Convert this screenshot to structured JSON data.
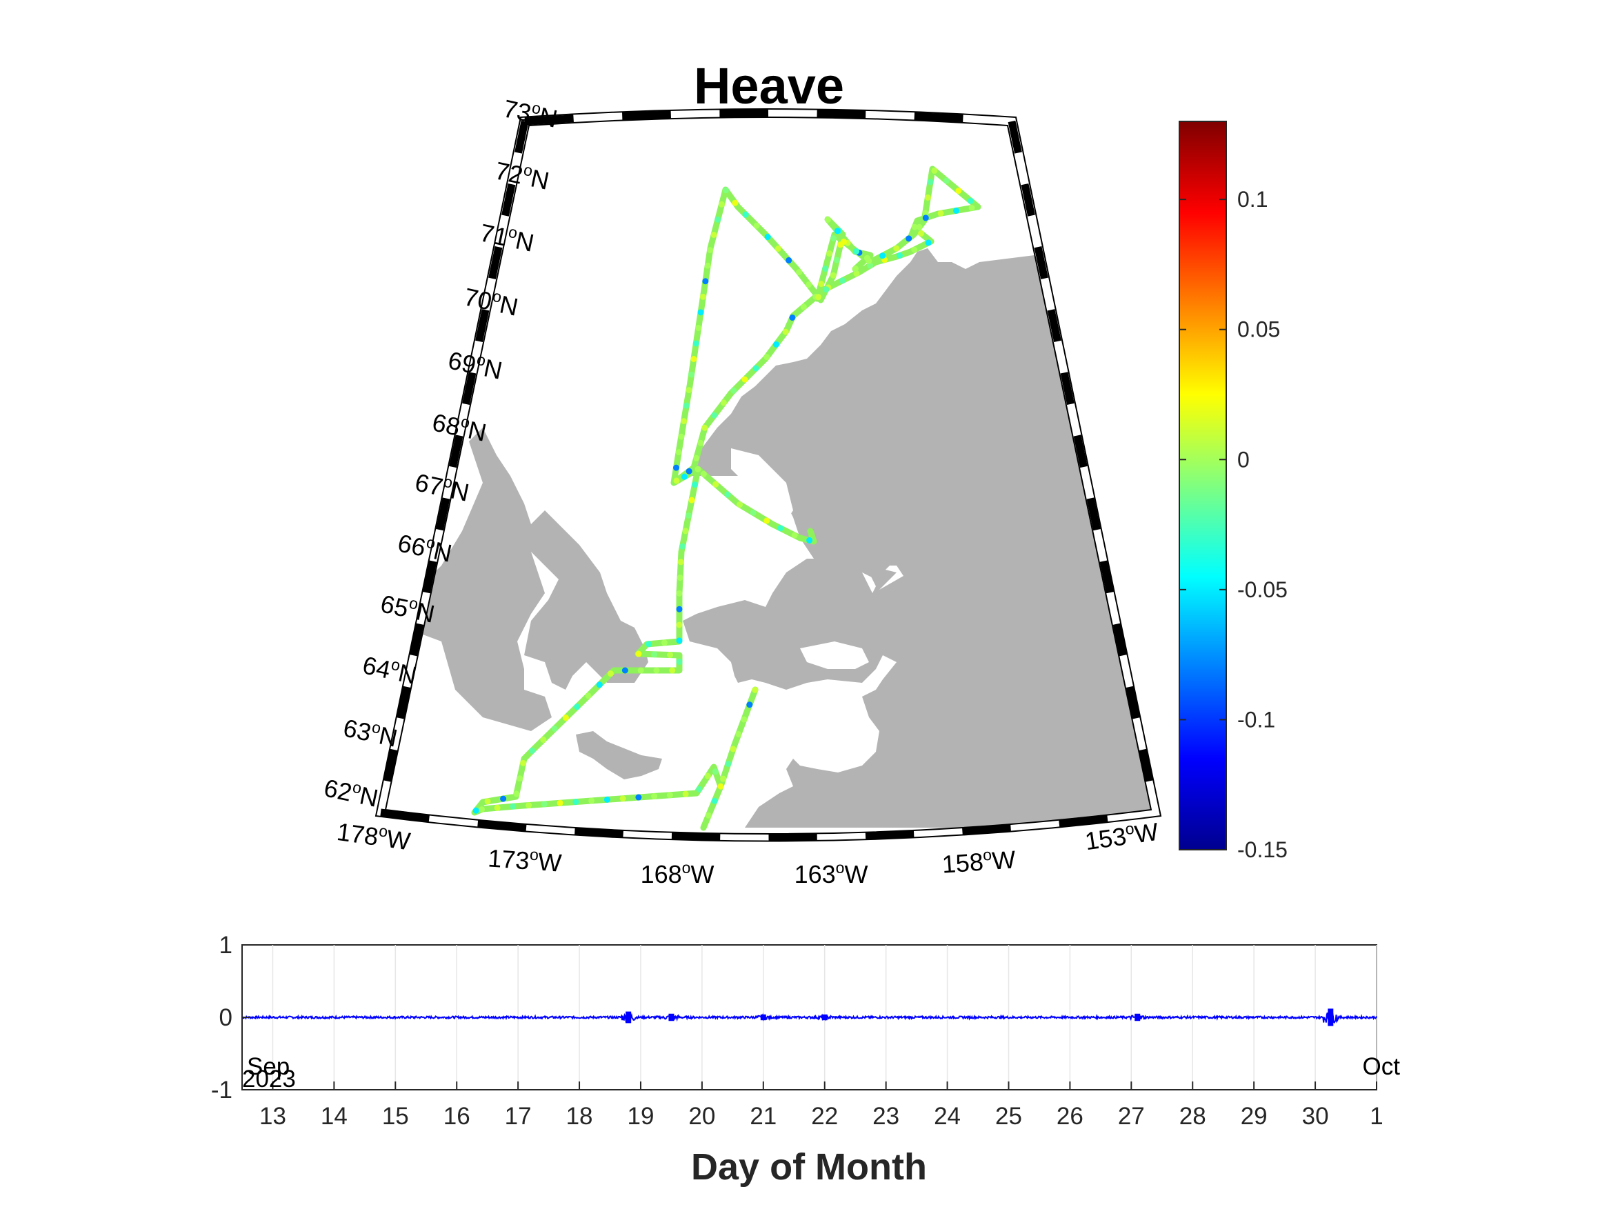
{
  "chart_data": [
    {
      "type": "scatter",
      "title": "Heave",
      "projection": "conic map",
      "lat_ticks": [
        "62",
        "63",
        "64",
        "65",
        "66",
        "67",
        "68",
        "69",
        "70",
        "71",
        "72",
        "73"
      ],
      "lon_ticks": [
        "178",
        "173",
        "168",
        "163",
        "158",
        "153"
      ],
      "lat_suffix": "N",
      "lon_suffix": "W",
      "degree_symbol": "o",
      "land_color": "#b3b3b3",
      "track_color": "#8ef25a",
      "colorbar": {
        "colormap": "jet",
        "clim": [
          -0.15,
          0.13
        ],
        "ticks": [
          0.1,
          0.05,
          0,
          -0.05,
          -0.1,
          -0.15
        ],
        "tick_labels": [
          "0.1",
          "0.05",
          "0",
          "-0.05",
          "-0.1",
          "-0.15"
        ]
      },
      "track_lon_lat": [
        [
          -174.0,
          62.05
        ],
        [
          -173.4,
          62.0
        ],
        [
          -170.0,
          62.1
        ],
        [
          -166.7,
          62.2
        ],
        [
          -165.2,
          62.4
        ],
        [
          -168.2,
          62.4
        ],
        [
          -168.3,
          62.8
        ],
        [
          -170.0,
          63.6
        ],
        [
          -170.5,
          64.2
        ],
        [
          -168.3,
          64.3
        ],
        [
          -167.6,
          64.3
        ],
        [
          -167.5,
          64.6
        ],
        [
          -168.2,
          64.6
        ],
        [
          -166.9,
          64.6
        ],
        [
          -166.9,
          64.8
        ],
        [
          -167.0,
          65.5
        ],
        [
          -167.3,
          66.7
        ],
        [
          -167.9,
          67.2
        ],
        [
          -167.3,
          67.1
        ],
        [
          -167.1,
          67.7
        ],
        [
          -166.8,
          68.5
        ],
        [
          -166.0,
          69.5
        ],
        [
          -164.5,
          70.1
        ],
        [
          -162.8,
          70.8
        ],
        [
          -161.3,
          71.1
        ],
        [
          -158.8,
          71.6
        ],
        [
          -157.1,
          71.7
        ],
        [
          -156.6,
          71.6
        ]
      ],
      "track_values_sample": [
        0.0,
        0.01,
        -0.02,
        0.005,
        -0.01,
        0.02,
        -0.03,
        0.0,
        -0.05,
        0.01,
        -0.08,
        0.0
      ]
    },
    {
      "type": "line",
      "series": [
        {
          "color": "#0000ff"
        }
      ],
      "xlabel": "Day of Month",
      "ylim": [
        -1,
        1
      ],
      "y_ticks": [
        "1",
        "0",
        "-1"
      ],
      "x_ticks": [
        "13",
        "14",
        "15",
        "16",
        "17",
        "18",
        "19",
        "20",
        "21",
        "22",
        "23",
        "24",
        "25",
        "26",
        "27",
        "28",
        "29",
        "30",
        "1"
      ],
      "x_range_days": [
        "2023-09-12.5",
        "2023-10-01"
      ],
      "date_start": [
        "Sep",
        "2023"
      ],
      "date_end": "Oct",
      "grid": true,
      "spikes": [
        {
          "day": 18.8,
          "amp": 0.08
        },
        {
          "day": 19.5,
          "amp": 0.05
        },
        {
          "day": 21.0,
          "amp": 0.04
        },
        {
          "day": 22.0,
          "amp": 0.04
        },
        {
          "day": 27.1,
          "amp": 0.05
        },
        {
          "day": 30.25,
          "amp": 0.12
        }
      ]
    }
  ]
}
